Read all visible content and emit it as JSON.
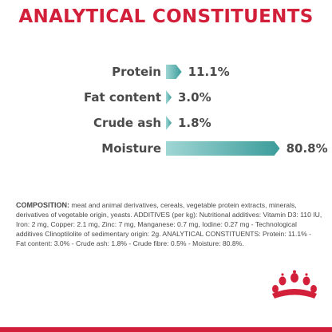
{
  "title": "ANALYTICAL CONSTITUENTS",
  "chart_data": {
    "type": "bar",
    "orientation": "horizontal",
    "categories": [
      "Protein",
      "Fat content",
      "Crude ash",
      "Moisture"
    ],
    "values": [
      11.1,
      3.0,
      1.8,
      80.8
    ],
    "value_labels": [
      "11.1%",
      "3.0%",
      "1.8%",
      "80.8%"
    ],
    "unit": "%",
    "xlim": [
      0,
      100
    ],
    "grid": false,
    "legend": "none",
    "colors": {
      "bar_start": "#9fd6d4",
      "bar_end": "#3b9c9a",
      "label": "#4a4a4a"
    }
  },
  "composition": {
    "label": "COMPOSITION:",
    "text": " meat and animal derivatives, cereals, vegetable protein extracts, minerals, derivatives of vegetable origin, yeasts. ADDITIVES (per kg): Nutritional additives: Vitamin D3: 110 IU, Iron: 2 mg, Copper: 2.1 mg, Zinc: 7 mg, Manganese: 0.7 mg, Iodine: 0.27 mg - Technological additives Clinoptilolite of sedimentary origin: 2g. ANALYTICAL CONSTITUENTS: Protein: 11.1% - Fat content: 3.0% - Crude ash: 1.8% - Crude fibre: 0.5% - Moisture: 80.8%."
  },
  "brand": {
    "logo": "royal-canin-crown-logo",
    "color": "#d3203a"
  }
}
